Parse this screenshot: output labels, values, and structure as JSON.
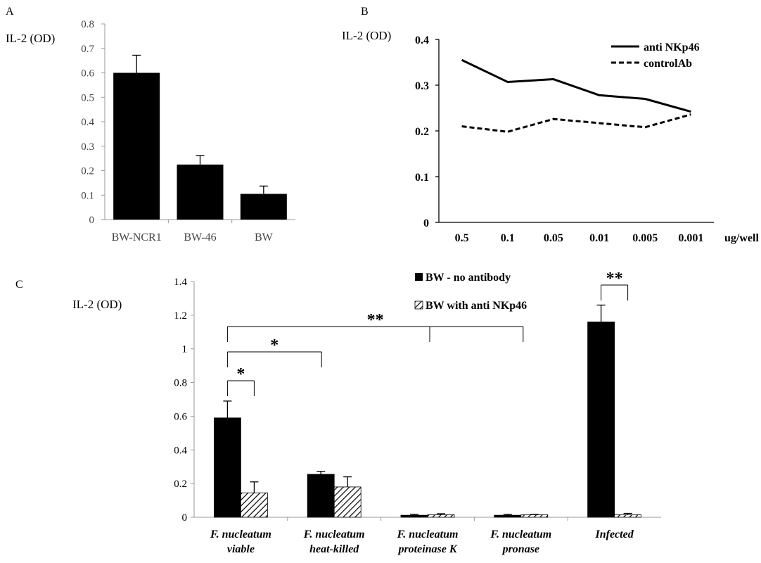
{
  "chart_data": [
    {
      "panel": "A",
      "type": "bar",
      "ylabel": "IL-2 (OD)",
      "ylim": [
        0,
        0.8
      ],
      "yticks": [
        "0",
        "0.1",
        "0.2",
        "0.3",
        "0.4",
        "0.5",
        "0.6",
        "0.7",
        "0.8"
      ],
      "categories": [
        "BW-NCR1",
        "BW-46",
        "BW"
      ],
      "values": [
        0.6,
        0.225,
        0.105
      ],
      "errors": [
        0.072,
        0.037,
        0.032
      ],
      "bar_color": "#000000"
    },
    {
      "panel": "B",
      "type": "line",
      "ylabel": "IL-2 (OD)",
      "ylim": [
        0,
        0.4
      ],
      "yticks": [
        "0",
        "0.1",
        "0.2",
        "0.3",
        "0.4"
      ],
      "categories": [
        "0.5",
        "0.1",
        "0.05",
        "0.01",
        "0.005",
        "0.001"
      ],
      "xunit": "ug/well",
      "legend_position": "top-right",
      "series": [
        {
          "name": "anti NKp46",
          "style": "solid",
          "values": [
            0.355,
            0.307,
            0.313,
            0.278,
            0.27,
            0.242
          ]
        },
        {
          "name": "controlAb",
          "style": "dashed",
          "values": [
            0.21,
            0.198,
            0.226,
            0.217,
            0.208,
            0.236
          ]
        }
      ]
    },
    {
      "panel": "C",
      "type": "bar",
      "ylabel": "IL-2 (OD)",
      "ylim": [
        0,
        1.4
      ],
      "yticks": [
        "0",
        "0.2",
        "0.4",
        "0.6",
        "0.8",
        "1",
        "1.2",
        "1.4"
      ],
      "categories": [
        [
          "F. nucleatum",
          "viable"
        ],
        [
          "F. nucleatum",
          "heat-killed"
        ],
        [
          "F. nucleatum",
          "proteinase K"
        ],
        [
          "F. nucleatum",
          "pronase"
        ],
        [
          "Infected"
        ]
      ],
      "legend_position": "top",
      "series": [
        {
          "name": "BW - no antibody",
          "fill": "solid",
          "values": [
            0.59,
            0.255,
            0.012,
            0.012,
            1.16
          ],
          "errors": [
            0.1,
            0.018,
            0.006,
            0.006,
            0.1
          ]
        },
        {
          "name": "BW with anti NKp46",
          "fill": "hatched",
          "values": [
            0.145,
            0.18,
            0.015,
            0.015,
            0.015
          ],
          "errors": [
            0.065,
            0.06,
            0.006,
            0.002,
            0.008
          ]
        }
      ],
      "significance": [
        "*",
        "*",
        "**",
        "**"
      ]
    }
  ]
}
